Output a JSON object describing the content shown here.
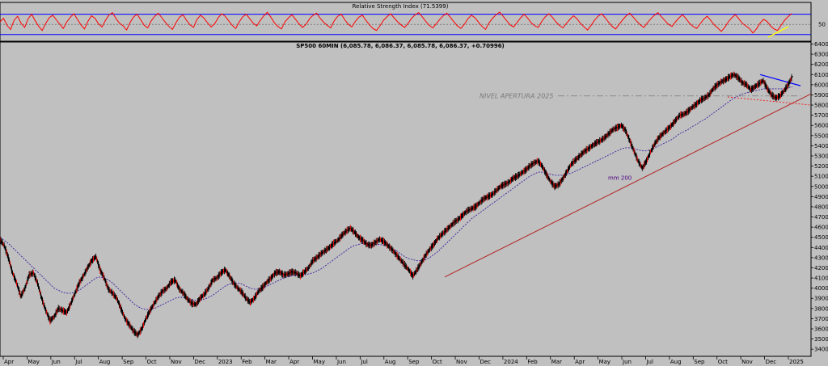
{
  "chart_data": [
    {
      "type": "line",
      "title": "Relative Strength Index (71.5399)",
      "y_tick_labels": [
        "50"
      ],
      "series": [
        {
          "values": [
            55,
            62,
            48,
            40,
            58,
            66,
            52,
            44,
            61,
            70,
            57,
            46,
            38,
            52,
            63,
            68,
            59,
            50,
            42,
            55,
            64,
            71,
            60,
            49,
            41,
            56,
            67,
            62,
            51,
            45,
            58,
            69,
            73,
            61,
            52,
            47,
            39,
            54,
            65,
            70,
            59,
            48,
            43,
            57,
            66,
            72,
            63,
            54,
            46,
            40,
            53,
            64,
            69,
            58,
            49,
            44,
            60,
            68,
            62,
            53,
            45,
            51,
            63,
            71,
            66,
            57,
            48,
            42,
            55,
            65,
            70,
            61,
            52,
            47,
            58,
            67,
            74,
            64,
            53,
            46,
            41,
            55,
            63,
            69,
            60,
            51,
            44,
            50,
            61,
            68,
            72,
            62,
            54,
            48,
            43,
            57,
            66,
            70,
            59,
            50,
            45,
            56,
            64,
            68,
            58,
            49,
            42,
            38,
            47,
            58,
            65,
            71,
            63,
            55,
            49,
            44,
            52,
            62,
            69,
            73,
            65,
            56,
            48,
            43,
            51,
            60,
            67,
            72,
            64,
            55,
            47,
            42,
            50,
            61,
            68,
            63,
            54,
            46,
            40,
            53,
            62,
            69,
            74,
            66,
            57,
            49,
            45,
            54,
            63,
            70,
            62,
            53,
            47,
            44,
            56,
            65,
            71,
            64,
            55,
            48,
            43,
            52,
            60,
            67,
            61,
            52,
            45,
            39,
            48,
            58,
            66,
            71,
            63,
            54,
            46,
            41,
            50,
            59,
            67,
            72,
            64,
            56,
            49,
            44,
            53,
            61,
            68,
            73,
            65,
            57,
            50,
            46,
            55,
            63,
            69,
            61,
            52,
            46,
            42,
            51,
            60,
            66,
            58,
            49,
            43,
            36,
            44,
            55,
            63,
            69,
            61,
            52,
            47,
            42,
            33,
            41,
            52,
            60,
            56,
            47,
            41,
            38,
            48,
            58,
            65,
            71.5
          ]
        }
      ]
    },
    {
      "type": "line",
      "title": "SP500 60MIN (6,085.78, 6,086.37, 6,085.78, 6,086.37, +0.70996)",
      "x_tick_labels": [
        "Apr",
        "May",
        "Jun",
        "Jul",
        "Aug",
        "Sep",
        "Oct",
        "Nov",
        "Dec",
        "2023",
        "Feb",
        "Mar",
        "Apr",
        "May",
        "Jun",
        "Jul",
        "Aug",
        "Sep",
        "Oct",
        "Nov",
        "Dec",
        "2024",
        "Feb",
        "Mar",
        "Apr",
        "May",
        "Jun",
        "Jul",
        "Aug",
        "Sep",
        "Oct",
        "Nov",
        "Dec",
        "2025"
      ],
      "y_tick_labels": [
        "3400",
        "3500",
        "3600",
        "3700",
        "3800",
        "3900",
        "4000",
        "4100",
        "4200",
        "4300",
        "4400",
        "4500",
        "4600",
        "4700",
        "4800",
        "4900",
        "5000",
        "5100",
        "5200",
        "5300",
        "5400",
        "5500",
        "5600",
        "5700",
        "5800",
        "5900",
        "6000",
        "6100",
        "6200",
        "6300",
        "6400"
      ],
      "ylim": [
        3330,
        6420
      ],
      "annotations": [
        "NIVEL APERTURA 2025",
        "mm 200"
      ],
      "series": [
        {
          "values": [
            4480,
            4420,
            4300,
            4150,
            4050,
            3920,
            4000,
            4130,
            4150,
            4050,
            3900,
            3780,
            3680,
            3720,
            3800,
            3780,
            3760,
            3850,
            3950,
            4050,
            4120,
            4200,
            4270,
            4310,
            4180,
            4100,
            3990,
            3950,
            3900,
            3800,
            3700,
            3640,
            3580,
            3540,
            3600,
            3700,
            3780,
            3850,
            3920,
            3970,
            4000,
            4060,
            4080,
            3990,
            3950,
            3890,
            3850,
            3840,
            3900,
            3940,
            4000,
            4080,
            4100,
            4150,
            4180,
            4120,
            4050,
            4000,
            3960,
            3900,
            3860,
            3900,
            3970,
            4010,
            4060,
            4100,
            4150,
            4160,
            4130,
            4140,
            4160,
            4150,
            4120,
            4160,
            4200,
            4270,
            4300,
            4340,
            4370,
            4400,
            4440,
            4470,
            4520,
            4560,
            4590,
            4550,
            4500,
            4470,
            4430,
            4420,
            4450,
            4480,
            4460,
            4420,
            4380,
            4330,
            4280,
            4230,
            4180,
            4120,
            4180,
            4250,
            4320,
            4380,
            4430,
            4490,
            4530,
            4570,
            4610,
            4650,
            4680,
            4720,
            4760,
            4780,
            4800,
            4840,
            4880,
            4900,
            4920,
            4960,
            5000,
            5020,
            5040,
            5080,
            5100,
            5130,
            5160,
            5200,
            5230,
            5250,
            5200,
            5120,
            5050,
            5000,
            5020,
            5080,
            5150,
            5220,
            5260,
            5300,
            5340,
            5370,
            5400,
            5430,
            5450,
            5480,
            5520,
            5560,
            5580,
            5600,
            5550,
            5450,
            5350,
            5250,
            5180,
            5250,
            5340,
            5420,
            5480,
            5520,
            5560,
            5600,
            5650,
            5700,
            5710,
            5740,
            5780,
            5810,
            5850,
            5870,
            5900,
            5960,
            6000,
            6030,
            6050,
            6080,
            6100,
            6070,
            6020,
            6000,
            5950,
            5980,
            6010,
            6040,
            5960,
            5900,
            5870,
            5890,
            5940,
            6000,
            6086
          ]
        },
        {
          "name": "mm 200",
          "values": [
            4500,
            4470,
            4440,
            4400,
            4360,
            4320,
            4280,
            4240,
            4200,
            4160,
            4120,
            4080,
            4040,
            4000,
            3980,
            3960,
            3950,
            3950,
            3960,
            3980,
            4010,
            4040,
            4070,
            4100,
            4110,
            4100,
            4080,
            4050,
            4010,
            3970,
            3930,
            3890,
            3850,
            3820,
            3800,
            3790,
            3790,
            3800,
            3820,
            3840,
            3860,
            3880,
            3900,
            3910,
            3910,
            3900,
            3890,
            3880,
            3880,
            3890,
            3910,
            3930,
            3960,
            3990,
            4020,
            4040,
            4050,
            4050,
            4040,
            4020,
            4000,
            3990,
            3990,
            4000,
            4020,
            4040,
            4060,
            4080,
            4100,
            4110,
            4120,
            4130,
            4130,
            4130,
            4140,
            4150,
            4170,
            4190,
            4220,
            4250,
            4280,
            4310,
            4340,
            4370,
            4400,
            4420,
            4430,
            4440,
            4440,
            4440,
            4430,
            4430,
            4420,
            4410,
            4390,
            4370,
            4340,
            4310,
            4290,
            4280,
            4270,
            4270,
            4280,
            4300,
            4330,
            4360,
            4400,
            4440,
            4480,
            4520,
            4560,
            4600,
            4640,
            4680,
            4710,
            4740,
            4770,
            4800,
            4830,
            4860,
            4890,
            4920,
            4950,
            4980,
            5010,
            5040,
            5070,
            5100,
            5120,
            5140,
            5140,
            5130,
            5120,
            5110,
            5110,
            5110,
            5120,
            5130,
            5150,
            5170,
            5190,
            5210,
            5230,
            5250,
            5270,
            5290,
            5310,
            5330,
            5350,
            5370,
            5380,
            5380,
            5370,
            5360,
            5350,
            5350,
            5360,
            5380,
            5400,
            5420,
            5440,
            5460,
            5490,
            5520,
            5540,
            5560,
            5590,
            5610,
            5640,
            5660,
            5690,
            5720,
            5750,
            5780,
            5810,
            5840,
            5870,
            5890,
            5910,
            5920,
            5930,
            5940,
            5950,
            5960,
            5960,
            5960,
            5960,
            5960,
            5960,
            5970,
            5980
          ]
        }
      ]
    }
  ]
}
